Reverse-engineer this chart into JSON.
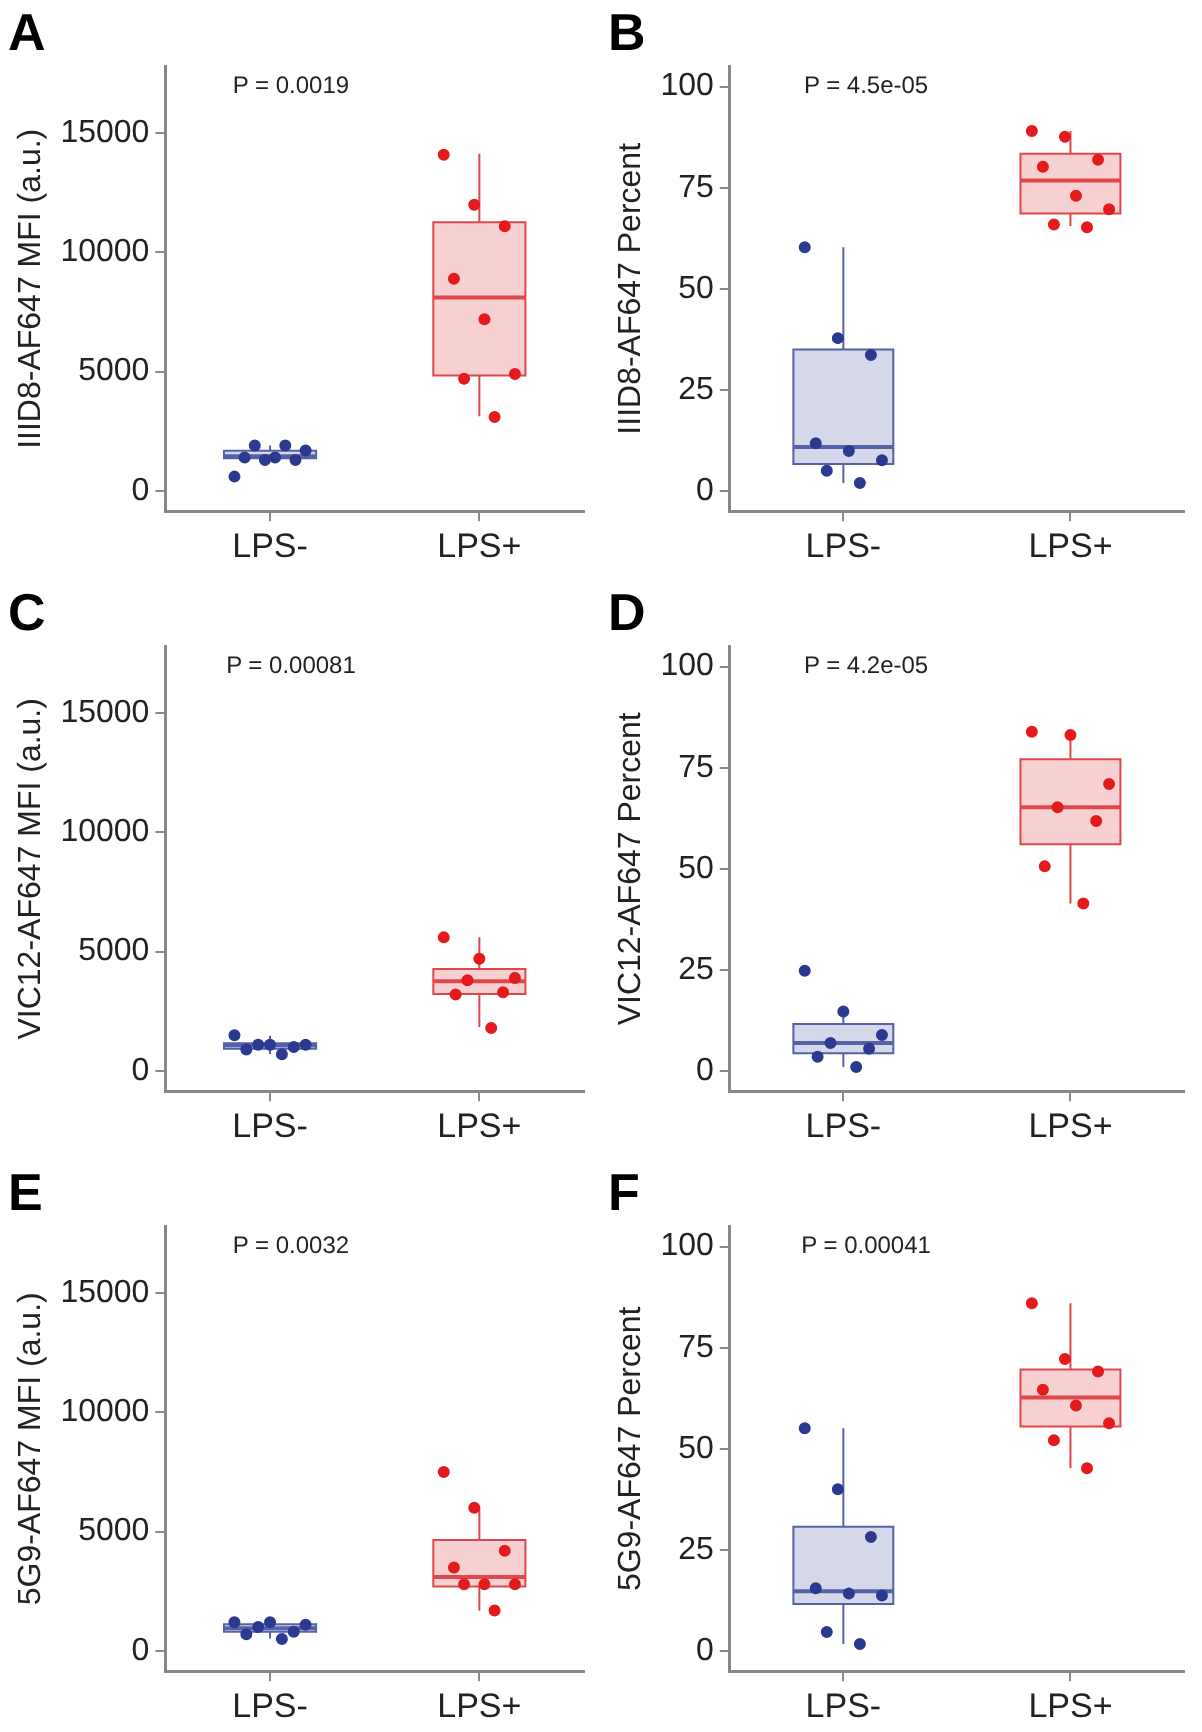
{
  "chart_data": [
    {
      "type": "box",
      "title": "A",
      "ylabel": "IIID8-AF647 MFI (a.u.)",
      "annotations": [
        "P = 0.0019"
      ],
      "categories": [
        "LPS-",
        "LPS+"
      ],
      "ylim": [
        -850,
        17800
      ],
      "yticks": [
        0,
        5000,
        10000,
        15000
      ],
      "series": [
        {
          "type": "box",
          "colors": [
            "#5562a8",
            "#e0474c"
          ],
          "boxes": [
            {
              "low": 1300,
              "q1": 1370,
              "median": 1450,
              "q3": 1680,
              "high": 1900
            },
            {
              "low": 3130,
              "q1": 4840,
              "median": 8110,
              "q3": 11270,
              "high": 14140
            }
          ]
        },
        {
          "type": "scatter",
          "color": "#2b3990",
          "x": [
            "LPS-",
            "LPS-",
            "LPS-",
            "LPS-",
            "LPS-",
            "LPS-",
            "LPS-",
            "LPS-"
          ],
          "values": [
            600,
            1300,
            1300,
            1400,
            1400,
            1700,
            1900,
            1900
          ]
        },
        {
          "type": "scatter",
          "color": "#e41a1c",
          "x": [
            "LPS+",
            "LPS+",
            "LPS+",
            "LPS+",
            "LPS+",
            "LPS+",
            "LPS+",
            "LPS+"
          ],
          "values": [
            14100,
            12000,
            11100,
            8900,
            7200,
            4900,
            4700,
            3100
          ]
        }
      ]
    },
    {
      "type": "box",
      "title": "B",
      "ylabel": "IIID8-AF647 Percent",
      "annotations": [
        "P = 4.5e-05"
      ],
      "categories": [
        "LPS-",
        "LPS+"
      ],
      "ylim": [
        -5,
        105
      ],
      "yticks": [
        0,
        25,
        50,
        75,
        100
      ],
      "series": [
        {
          "type": "box",
          "colors": [
            "#5562a8",
            "#e0474c"
          ],
          "boxes": [
            {
              "low": 2,
              "q1": 6.7,
              "median": 10.9,
              "q3": 35,
              "high": 60.3
            },
            {
              "low": 65.5,
              "q1": 68.6,
              "median": 76.8,
              "q3": 83.4,
              "high": 89
            }
          ]
        },
        {
          "type": "scatter",
          "color": "#2b3990",
          "x": [
            "LPS-",
            "LPS-",
            "LPS-",
            "LPS-",
            "LPS-",
            "LPS-",
            "LPS-",
            "LPS-"
          ],
          "values": [
            60.3,
            37.8,
            33.6,
            11.8,
            9.9,
            7.6,
            5,
            2
          ]
        },
        {
          "type": "scatter",
          "color": "#e41a1c",
          "x": [
            "LPS+",
            "LPS+",
            "LPS+",
            "LPS+",
            "LPS+",
            "LPS+",
            "LPS+",
            "LPS+"
          ],
          "values": [
            89,
            87.6,
            81.9,
            80.2,
            73,
            69.7,
            65.9,
            65.2
          ]
        }
      ]
    },
    {
      "type": "box",
      "title": "C",
      "ylabel": "VIC12-AF647 MFI (a.u.)",
      "annotations": [
        "P = 0.00081"
      ],
      "categories": [
        "LPS-",
        "LPS+"
      ],
      "ylim": [
        -850,
        17800
      ],
      "yticks": [
        0,
        5000,
        10000,
        15000
      ],
      "series": [
        {
          "type": "box",
          "colors": [
            "#5562a8",
            "#e0474c"
          ],
          "boxes": [
            {
              "low": 710,
              "q1": 930,
              "median": 1075,
              "q3": 1160,
              "high": 1470
            },
            {
              "low": 1840,
              "q1": 3230,
              "median": 3760,
              "q3": 4270,
              "high": 5600
            }
          ]
        },
        {
          "type": "scatter",
          "color": "#2b3990",
          "x": [
            "LPS-",
            "LPS-",
            "LPS-",
            "LPS-",
            "LPS-",
            "LPS-",
            "LPS-"
          ],
          "values": [
            1500,
            1100,
            1100,
            1100,
            1000,
            900,
            700
          ]
        },
        {
          "type": "scatter",
          "color": "#e41a1c",
          "x": [
            "LPS+",
            "LPS+",
            "LPS+",
            "LPS+",
            "LPS+",
            "LPS+",
            "LPS+"
          ],
          "values": [
            5600,
            4700,
            3900,
            3800,
            3300,
            3200,
            1800
          ]
        }
      ]
    },
    {
      "type": "box",
      "title": "D",
      "ylabel": "VIC12-AF647 Percent",
      "annotations": [
        "P = 4.2e-05"
      ],
      "categories": [
        "LPS-",
        "LPS+"
      ],
      "ylim": [
        -5,
        105
      ],
      "yticks": [
        0,
        25,
        50,
        75,
        100
      ],
      "series": [
        {
          "type": "box",
          "colors": [
            "#5562a8",
            "#e0474c"
          ],
          "boxes": [
            {
              "low": 1,
              "q1": 4.4,
              "median": 6.9,
              "q3": 11.6,
              "high": 14.7
            },
            {
              "low": 41.4,
              "q1": 56.1,
              "median": 65.2,
              "q3": 77.1,
              "high": 83.9
            }
          ]
        },
        {
          "type": "scatter",
          "color": "#2b3990",
          "x": [
            "LPS-",
            "LPS-",
            "LPS-",
            "LPS-",
            "LPS-",
            "LPS-",
            "LPS-"
          ],
          "values": [
            24.8,
            14.7,
            8.9,
            6.9,
            5.5,
            3.5,
            1
          ]
        },
        {
          "type": "scatter",
          "color": "#e41a1c",
          "x": [
            "LPS+",
            "LPS+",
            "LPS+",
            "LPS+",
            "LPS+",
            "LPS+",
            "LPS+"
          ],
          "values": [
            83.9,
            83.1,
            71,
            65.2,
            61.8,
            50.6,
            41.4
          ]
        }
      ]
    },
    {
      "type": "box",
      "title": "E",
      "ylabel": "5G9-AF647 MFI (a.u.)",
      "annotations": [
        "P = 0.0032"
      ],
      "categories": [
        "LPS-",
        "LPS+"
      ],
      "ylim": [
        -850,
        17800
      ],
      "yticks": [
        0,
        5000,
        10000,
        15000
      ],
      "series": [
        {
          "type": "box",
          "colors": [
            "#5562a8",
            "#e0474c"
          ],
          "boxes": [
            {
              "low": 520,
              "q1": 800,
              "median": 950,
              "q3": 1120,
              "high": 1150
            },
            {
              "low": 1690,
              "q1": 2700,
              "median": 3100,
              "q3": 4650,
              "high": 5990
            }
          ]
        },
        {
          "type": "scatter",
          "color": "#2b3990",
          "x": [
            "LPS-",
            "LPS-",
            "LPS-",
            "LPS-",
            "LPS-",
            "LPS-",
            "LPS-"
          ],
          "values": [
            1200,
            1200,
            1100,
            1000,
            800,
            700,
            500
          ]
        },
        {
          "type": "scatter",
          "color": "#e41a1c",
          "x": [
            "LPS+",
            "LPS+",
            "LPS+",
            "LPS+",
            "LPS+",
            "LPS+",
            "LPS+",
            "LPS+"
          ],
          "values": [
            7500,
            6000,
            4200,
            3500,
            2800,
            2800,
            2800,
            1700
          ]
        }
      ]
    },
    {
      "type": "box",
      "title": "F",
      "ylabel": "5G9-AF647 Percent",
      "annotations": [
        "P = 0.00041"
      ],
      "categories": [
        "LPS-",
        "LPS+"
      ],
      "ylim": [
        -5,
        105
      ],
      "yticks": [
        0,
        25,
        50,
        75,
        100
      ],
      "series": [
        {
          "type": "box",
          "colors": [
            "#5562a8",
            "#e0474c"
          ],
          "boxes": [
            {
              "low": 1.7,
              "q1": 11.6,
              "median": 14.8,
              "q3": 30.7,
              "high": 55.1
            },
            {
              "low": 45.2,
              "q1": 55.5,
              "median": 62.7,
              "q3": 69.6,
              "high": 86
            }
          ]
        },
        {
          "type": "scatter",
          "color": "#2b3990",
          "x": [
            "LPS-",
            "LPS-",
            "LPS-",
            "LPS-",
            "LPS-",
            "LPS-",
            "LPS-",
            "LPS-"
          ],
          "values": [
            55.1,
            40,
            28.2,
            15.5,
            14.2,
            13.7,
            4.7,
            1.7
          ]
        },
        {
          "type": "scatter",
          "color": "#e41a1c",
          "x": [
            "LPS+",
            "LPS+",
            "LPS+",
            "LPS+",
            "LPS+",
            "LPS+",
            "LPS+",
            "LPS+"
          ],
          "values": [
            86,
            72.2,
            69.1,
            64.6,
            60.7,
            56.3,
            52.1,
            45.2
          ]
        }
      ]
    }
  ]
}
